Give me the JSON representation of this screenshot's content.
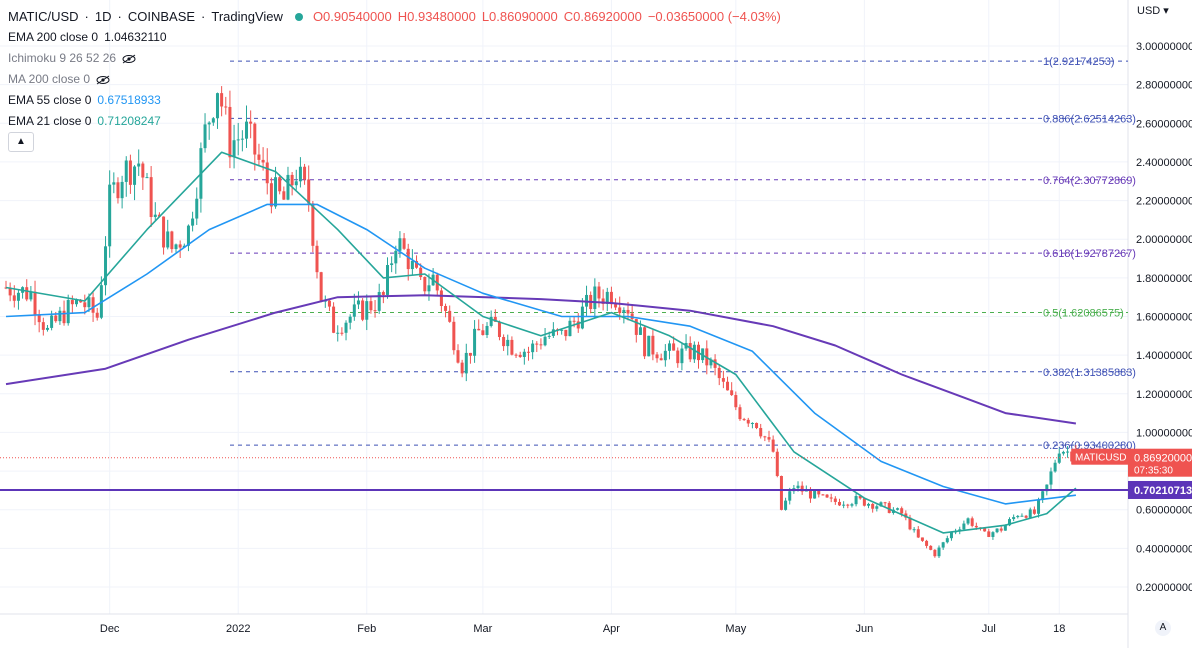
{
  "header": {
    "symbol": "MATIC/USD",
    "interval": "1D",
    "exchange": "COINBASE",
    "provider": "TradingView",
    "open": "O0.90540000",
    "high": "H0.93480000",
    "low": "L0.86090000",
    "close": "C0.86920000",
    "change": "−0.03650000 (−4.03%)"
  },
  "indicators": [
    {
      "label": "EMA 200 close 0",
      "value": "1.04632110",
      "value_color": "#131722",
      "hidden": false
    },
    {
      "label": "Ichimoku 9 26 52 26",
      "value": "",
      "value_color": "#787b86",
      "hidden": true
    },
    {
      "label": "MA 200 close 0",
      "value": "",
      "value_color": "#787b86",
      "hidden": true
    },
    {
      "label": "EMA 55 close 0",
      "value": "0.67518933",
      "value_color": "#2196f3",
      "hidden": false
    },
    {
      "label": "EMA 21 close 0",
      "value": "0.71208247",
      "value_color": "#26a69a",
      "hidden": false
    }
  ],
  "colors": {
    "up": "#26a69a",
    "down": "#ef5350",
    "ema200": "#673ab7",
    "ema55": "#2196f3",
    "ema21": "#26a69a",
    "fib_blue": "#3f51b5",
    "horizontal_line": "#5c35b8"
  },
  "price_axis": {
    "currency": "USD",
    "scale_mode": "A",
    "last_price_tag": {
      "symbol": "MATICUSD",
      "price": "0.86920000",
      "countdown": "07:35:30"
    },
    "line_tag": "0.70210713"
  },
  "chart_data": {
    "type": "candlestick",
    "title": "MATIC/USD · 1D · COINBASE",
    "xlabel": "",
    "ylabel": "",
    "ylim": [
      0.1,
      3.1
    ],
    "yticks": [
      0.2,
      0.4,
      0.6,
      0.8,
      1.0,
      1.2,
      1.4,
      1.6,
      1.8,
      2.0,
      2.2,
      2.4,
      2.6,
      2.8,
      3.0
    ],
    "ytick_labels": [
      "0.20000000",
      "0.40000000",
      "0.60000000",
      "0.80000000",
      "1.00000000",
      "1.20000000",
      "1.40000000",
      "1.60000000",
      "1.80000000",
      "2.00000000",
      "2.20000000",
      "2.40000000",
      "2.60000000",
      "2.80000000",
      "3.00000000"
    ],
    "x_start": "2021-11-06",
    "x_end": "2022-07-23",
    "xticks": [
      {
        "label": "Dec",
        "date": "2021-12-01"
      },
      {
        "label": "2022",
        "date": "2022-01-01"
      },
      {
        "label": "Feb",
        "date": "2022-02-01"
      },
      {
        "label": "Mar",
        "date": "2022-03-01"
      },
      {
        "label": "Apr",
        "date": "2022-04-01"
      },
      {
        "label": "May",
        "date": "2022-05-01"
      },
      {
        "label": "Jun",
        "date": "2022-06-01"
      },
      {
        "label": "Jul",
        "date": "2022-07-01"
      },
      {
        "label": "18",
        "date": "2022-07-18"
      }
    ],
    "price_path": [
      {
        "date": "2021-11-06",
        "close": 1.75
      },
      {
        "date": "2021-11-12",
        "close": 1.72
      },
      {
        "date": "2021-11-16",
        "close": 1.52
      },
      {
        "date": "2021-11-20",
        "close": 1.62
      },
      {
        "date": "2021-11-24",
        "close": 1.68
      },
      {
        "date": "2021-11-28",
        "close": 1.6
      },
      {
        "date": "2021-12-01",
        "close": 2.2
      },
      {
        "date": "2021-12-04",
        "close": 2.35
      },
      {
        "date": "2021-12-08",
        "close": 2.4
      },
      {
        "date": "2021-12-12",
        "close": 2.1
      },
      {
        "date": "2021-12-16",
        "close": 1.95
      },
      {
        "date": "2021-12-20",
        "close": 2.05
      },
      {
        "date": "2021-12-24",
        "close": 2.55
      },
      {
        "date": "2021-12-27",
        "close": 2.8
      },
      {
        "date": "2021-12-30",
        "close": 2.5
      },
      {
        "date": "2022-01-03",
        "close": 2.55
      },
      {
        "date": "2022-01-06",
        "close": 2.4
      },
      {
        "date": "2022-01-09",
        "close": 2.25
      },
      {
        "date": "2022-01-12",
        "close": 2.2
      },
      {
        "date": "2022-01-15",
        "close": 2.35
      },
      {
        "date": "2022-01-18",
        "close": 2.2
      },
      {
        "date": "2022-01-21",
        "close": 1.7
      },
      {
        "date": "2022-01-24",
        "close": 1.55
      },
      {
        "date": "2022-01-28",
        "close": 1.6
      },
      {
        "date": "2022-02-01",
        "close": 1.65
      },
      {
        "date": "2022-02-05",
        "close": 1.7
      },
      {
        "date": "2022-02-08",
        "close": 2.0
      },
      {
        "date": "2022-02-11",
        "close": 1.9
      },
      {
        "date": "2022-02-14",
        "close": 1.75
      },
      {
        "date": "2022-02-17",
        "close": 1.8
      },
      {
        "date": "2022-02-20",
        "close": 1.62
      },
      {
        "date": "2022-02-24",
        "close": 1.35
      },
      {
        "date": "2022-02-28",
        "close": 1.52
      },
      {
        "date": "2022-03-04",
        "close": 1.55
      },
      {
        "date": "2022-03-08",
        "close": 1.45
      },
      {
        "date": "2022-03-12",
        "close": 1.42
      },
      {
        "date": "2022-03-16",
        "close": 1.5
      },
      {
        "date": "2022-03-20",
        "close": 1.5
      },
      {
        "date": "2022-03-24",
        "close": 1.6
      },
      {
        "date": "2022-03-28",
        "close": 1.7
      },
      {
        "date": "2022-04-01",
        "close": 1.72
      },
      {
        "date": "2022-04-05",
        "close": 1.65
      },
      {
        "date": "2022-04-09",
        "close": 1.45
      },
      {
        "date": "2022-04-13",
        "close": 1.42
      },
      {
        "date": "2022-04-17",
        "close": 1.4
      },
      {
        "date": "2022-04-21",
        "close": 1.42
      },
      {
        "date": "2022-04-25",
        "close": 1.35
      },
      {
        "date": "2022-04-29",
        "close": 1.2
      },
      {
        "date": "2022-05-02",
        "close": 1.1
      },
      {
        "date": "2022-05-06",
        "close": 1.05
      },
      {
        "date": "2022-05-10",
        "close": 0.9
      },
      {
        "date": "2022-05-12",
        "close": 0.6
      },
      {
        "date": "2022-05-15",
        "close": 0.72
      },
      {
        "date": "2022-05-19",
        "close": 0.68
      },
      {
        "date": "2022-05-24",
        "close": 0.64
      },
      {
        "date": "2022-05-30",
        "close": 0.65
      },
      {
        "date": "2022-06-05",
        "close": 0.62
      },
      {
        "date": "2022-06-10",
        "close": 0.58
      },
      {
        "date": "2022-06-14",
        "close": 0.45
      },
      {
        "date": "2022-06-18",
        "close": 0.37
      },
      {
        "date": "2022-06-22",
        "close": 0.48
      },
      {
        "date": "2022-06-26",
        "close": 0.55
      },
      {
        "date": "2022-06-30",
        "close": 0.47
      },
      {
        "date": "2022-07-04",
        "close": 0.5
      },
      {
        "date": "2022-07-08",
        "close": 0.58
      },
      {
        "date": "2022-07-12",
        "close": 0.58
      },
      {
        "date": "2022-07-15",
        "close": 0.72
      },
      {
        "date": "2022-07-18",
        "close": 0.92
      },
      {
        "date": "2022-07-20",
        "close": 0.9
      },
      {
        "date": "2022-07-22",
        "close": 0.8692
      }
    ],
    "series": [
      {
        "name": "EMA 200 close 0",
        "points": [
          {
            "date": "2021-11-06",
            "value": 1.25
          },
          {
            "date": "2021-11-30",
            "value": 1.33
          },
          {
            "date": "2021-12-20",
            "value": 1.48
          },
          {
            "date": "2022-01-10",
            "value": 1.62
          },
          {
            "date": "2022-01-25",
            "value": 1.7
          },
          {
            "date": "2022-02-15",
            "value": 1.71
          },
          {
            "date": "2022-03-15",
            "value": 1.69
          },
          {
            "date": "2022-04-01",
            "value": 1.67
          },
          {
            "date": "2022-04-20",
            "value": 1.63
          },
          {
            "date": "2022-05-10",
            "value": 1.55
          },
          {
            "date": "2022-05-25",
            "value": 1.45
          },
          {
            "date": "2022-06-10",
            "value": 1.3
          },
          {
            "date": "2022-06-25",
            "value": 1.18
          },
          {
            "date": "2022-07-05",
            "value": 1.1
          },
          {
            "date": "2022-07-22",
            "value": 1.0463
          }
        ]
      },
      {
        "name": "EMA 55 close 0",
        "points": [
          {
            "date": "2021-11-06",
            "value": 1.6
          },
          {
            "date": "2021-11-25",
            "value": 1.62
          },
          {
            "date": "2021-12-10",
            "value": 1.82
          },
          {
            "date": "2021-12-25",
            "value": 2.05
          },
          {
            "date": "2022-01-08",
            "value": 2.18
          },
          {
            "date": "2022-01-20",
            "value": 2.18
          },
          {
            "date": "2022-02-01",
            "value": 2.05
          },
          {
            "date": "2022-02-15",
            "value": 1.85
          },
          {
            "date": "2022-03-01",
            "value": 1.72
          },
          {
            "date": "2022-03-20",
            "value": 1.6
          },
          {
            "date": "2022-04-05",
            "value": 1.6
          },
          {
            "date": "2022-04-20",
            "value": 1.55
          },
          {
            "date": "2022-05-05",
            "value": 1.42
          },
          {
            "date": "2022-05-20",
            "value": 1.1
          },
          {
            "date": "2022-06-05",
            "value": 0.85
          },
          {
            "date": "2022-06-20",
            "value": 0.72
          },
          {
            "date": "2022-07-05",
            "value": 0.63
          },
          {
            "date": "2022-07-22",
            "value": 0.6752
          }
        ]
      },
      {
        "name": "EMA 21 close 0",
        "points": [
          {
            "date": "2021-11-06",
            "value": 1.75
          },
          {
            "date": "2021-11-25",
            "value": 1.68
          },
          {
            "date": "2021-12-10",
            "value": 2.05
          },
          {
            "date": "2021-12-28",
            "value": 2.45
          },
          {
            "date": "2022-01-10",
            "value": 2.35
          },
          {
            "date": "2022-01-25",
            "value": 2.05
          },
          {
            "date": "2022-02-05",
            "value": 1.8
          },
          {
            "date": "2022-02-15",
            "value": 1.82
          },
          {
            "date": "2022-03-01",
            "value": 1.6
          },
          {
            "date": "2022-03-15",
            "value": 1.5
          },
          {
            "date": "2022-04-01",
            "value": 1.62
          },
          {
            "date": "2022-04-15",
            "value": 1.5
          },
          {
            "date": "2022-05-01",
            "value": 1.3
          },
          {
            "date": "2022-05-15",
            "value": 0.9
          },
          {
            "date": "2022-06-01",
            "value": 0.66
          },
          {
            "date": "2022-06-20",
            "value": 0.48
          },
          {
            "date": "2022-07-05",
            "value": 0.52
          },
          {
            "date": "2022-07-15",
            "value": 0.58
          },
          {
            "date": "2022-07-22",
            "value": 0.7121
          }
        ]
      }
    ],
    "fib_levels": [
      {
        "ratio": "1",
        "price": 2.92174253,
        "label": "1(2.92174253)",
        "color": "#3f51b5"
      },
      {
        "ratio": "0.886",
        "price": 2.62514263,
        "label": "0.886(2.62514263)",
        "color": "#3f51b5"
      },
      {
        "ratio": "0.764",
        "price": 2.30772869,
        "label": "0.764(2.30772869)",
        "color": "#673ab7"
      },
      {
        "ratio": "0.618",
        "price": 1.92787267,
        "label": "0.618(1.92787267)",
        "color": "#673ab7"
      },
      {
        "ratio": "0.5",
        "price": 1.62086575,
        "label": "0.5(1.62086575)",
        "color": "#4caf50"
      },
      {
        "ratio": "0.382",
        "price": 1.31385883,
        "label": "0.382(1.31385883)",
        "color": "#3f51b5"
      },
      {
        "ratio": "0.236",
        "price": 0.9340028,
        "label": "0.236(0.93400280)",
        "color": "#3f51b5"
      }
    ],
    "horizontal_line": {
      "price": 0.70210713
    },
    "grid": true,
    "legend_position": "top-left"
  }
}
